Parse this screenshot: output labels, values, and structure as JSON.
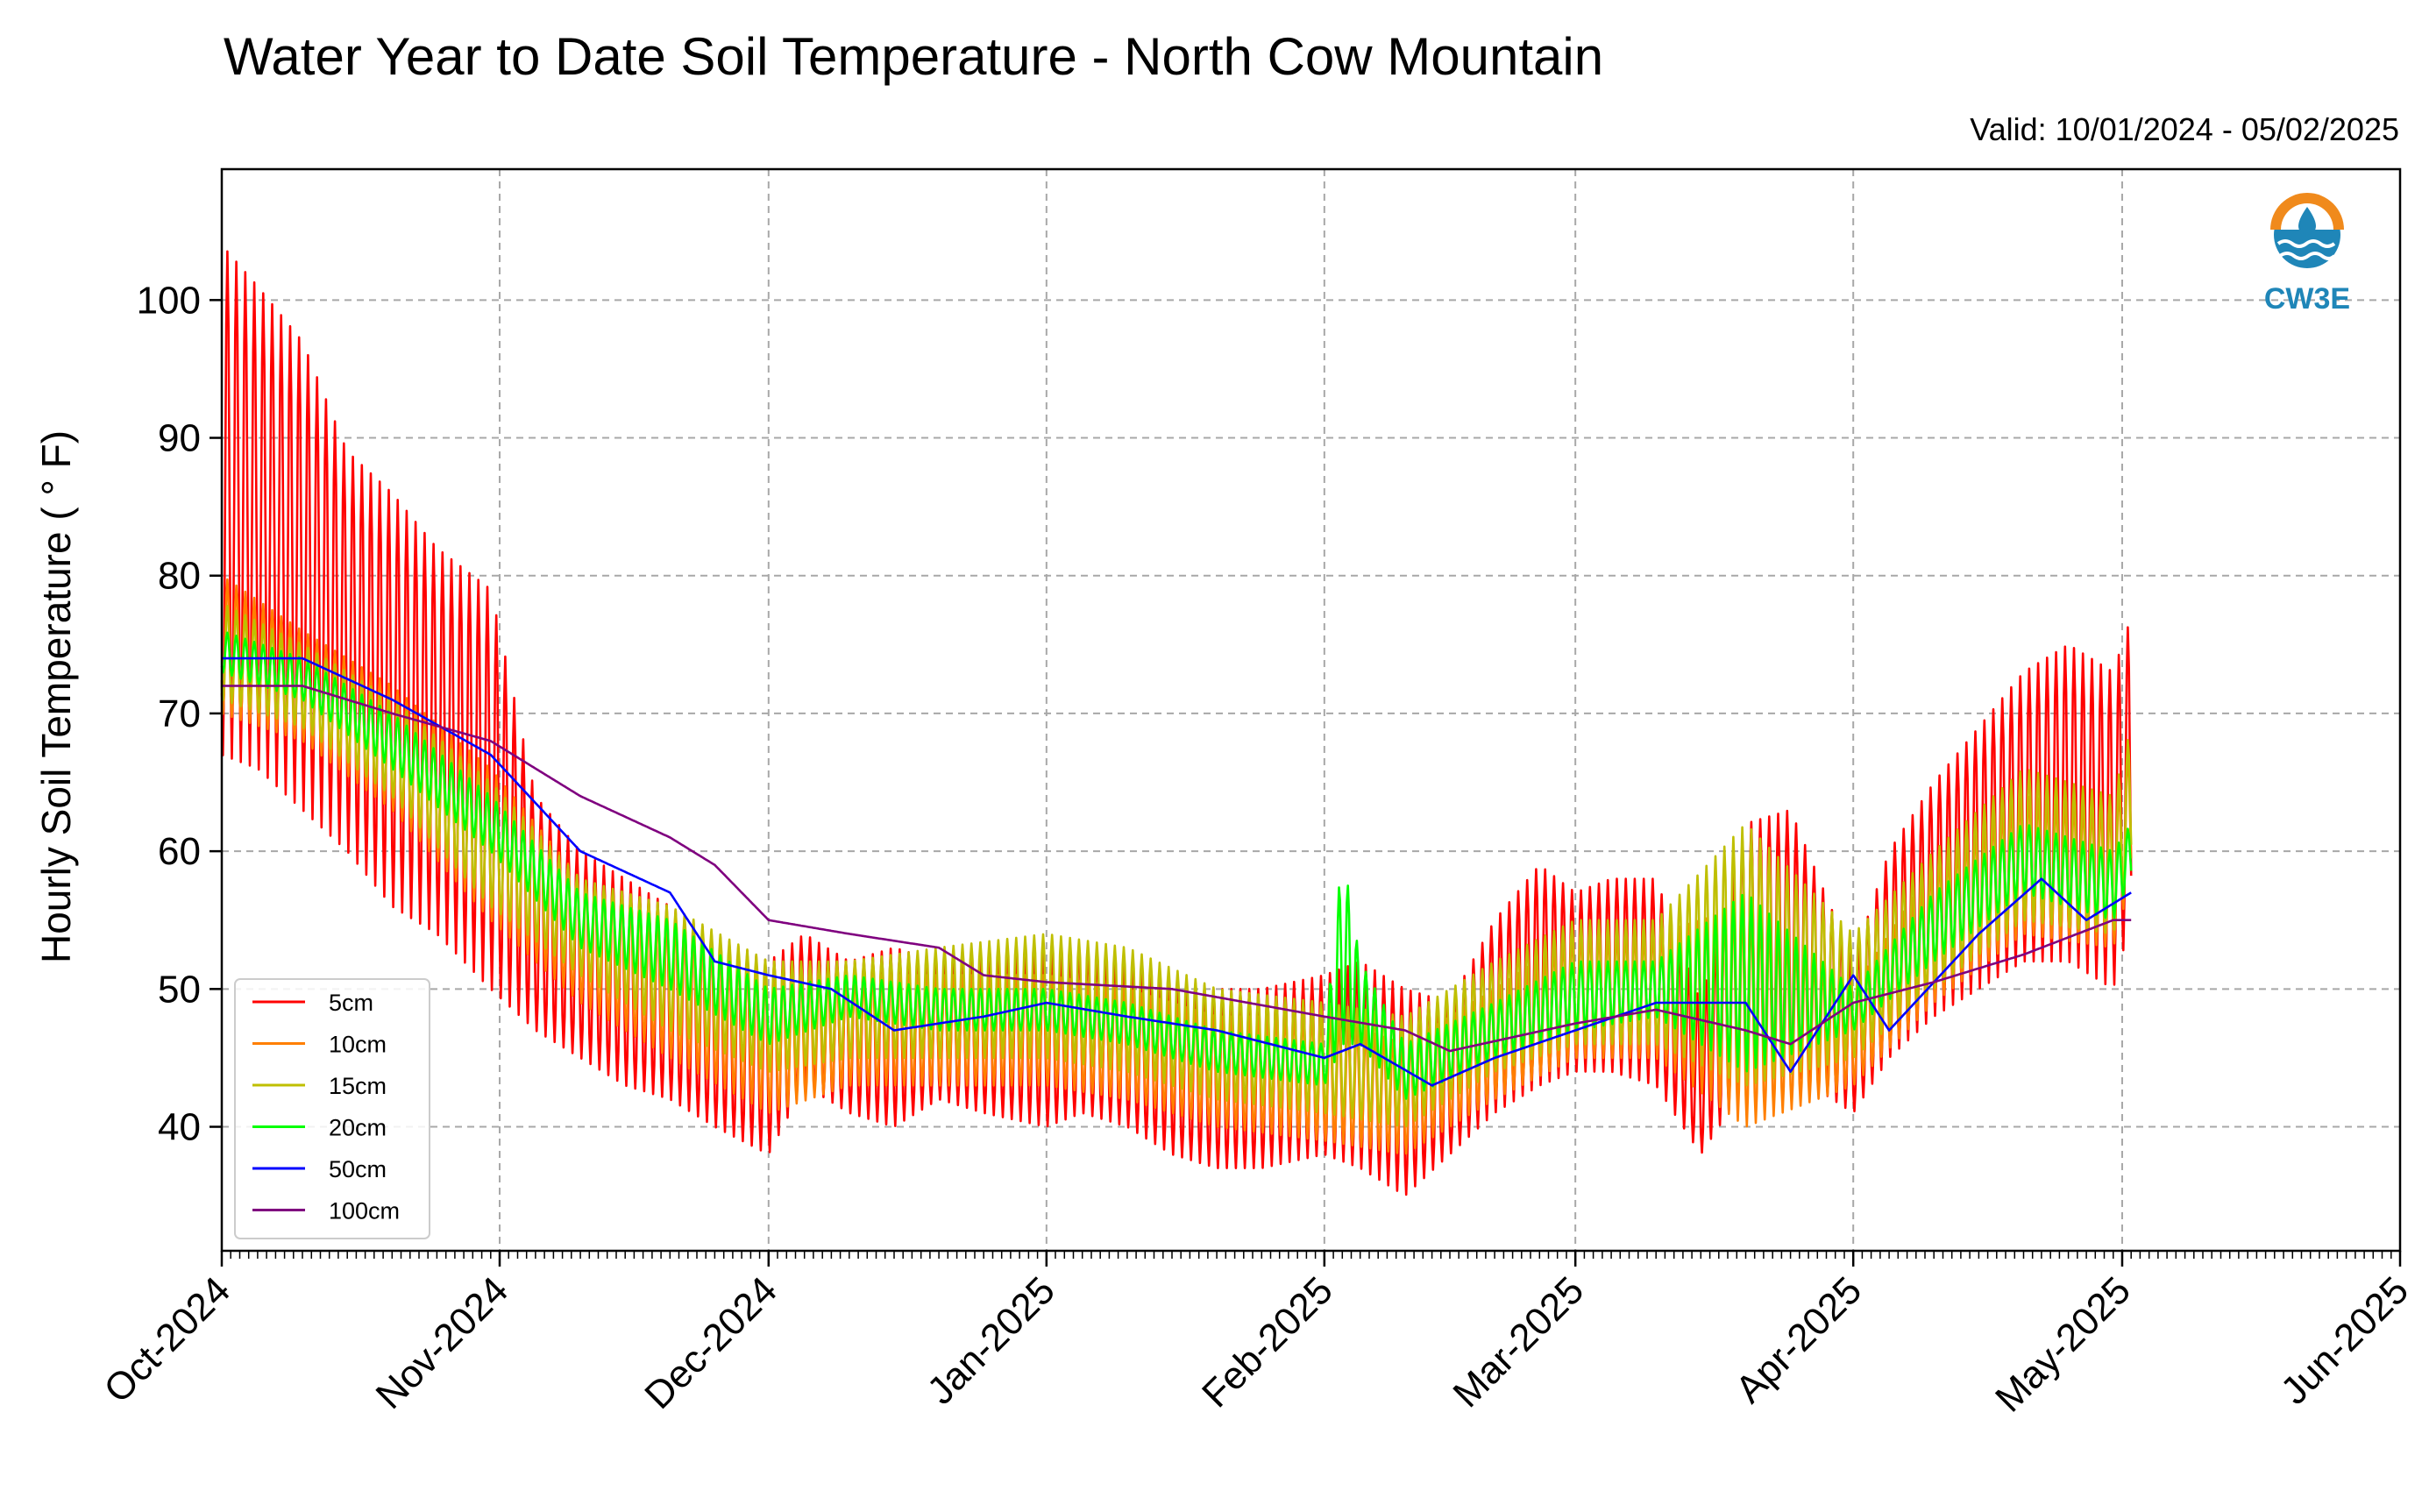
{
  "chart_data": {
    "type": "line",
    "title": "Water Year to Date Soil Temperature - North Cow Mountain",
    "subtitle": "Valid: 10/01/2024 - 05/02/2025",
    "xlabel": "",
    "ylabel": "Hourly Soil Temperature ( ° F)",
    "xlim": [
      "2024-10-01",
      "2025-06-01"
    ],
    "ylim": [
      31,
      109.5
    ],
    "yticks": [
      40,
      50,
      60,
      70,
      80,
      90,
      100
    ],
    "xticks": [
      {
        "label": "Oct-2024",
        "date": "2024-10-01"
      },
      {
        "label": "Nov-2024",
        "date": "2024-11-01"
      },
      {
        "label": "Dec-2024",
        "date": "2024-12-01"
      },
      {
        "label": "Jan-2025",
        "date": "2025-01-01"
      },
      {
        "label": "Feb-2025",
        "date": "2025-02-01"
      },
      {
        "label": "Mar-2025",
        "date": "2025-03-01"
      },
      {
        "label": "Apr-2025",
        "date": "2025-04-01"
      },
      {
        "label": "May-2025",
        "date": "2025-05-01"
      },
      {
        "label": "Jun-2025",
        "date": "2025-06-01"
      }
    ],
    "grid": true,
    "legend_position": "lower-left",
    "series": [
      {
        "name": "5cm",
        "color": "#ff0000",
        "x": [
          "2024-10-01",
          "2024-10-05",
          "2024-10-10",
          "2024-10-15",
          "2024-10-20",
          "2024-10-25",
          "2024-10-31",
          "2024-11-05",
          "2024-11-10",
          "2024-11-15",
          "2024-11-20",
          "2024-11-25",
          "2024-12-01",
          "2024-12-05",
          "2024-12-10",
          "2024-12-15",
          "2024-12-20",
          "2024-12-25",
          "2025-01-01",
          "2025-01-05",
          "2025-01-10",
          "2025-01-15",
          "2025-01-20",
          "2025-01-25",
          "2025-02-01",
          "2025-02-05",
          "2025-02-10",
          "2025-02-15",
          "2025-02-20",
          "2025-02-25",
          "2025-03-01",
          "2025-03-05",
          "2025-03-10",
          "2025-03-15",
          "2025-03-20",
          "2025-03-25",
          "2025-04-01",
          "2025-04-05",
          "2025-04-10",
          "2025-04-15",
          "2025-04-20",
          "2025-04-25",
          "2025-04-30",
          "2025-05-02"
        ],
        "daily_high": [
          104,
          101,
          97,
          89,
          86,
          82,
          79,
          64,
          60,
          58,
          56,
          54,
          52,
          54,
          52,
          53,
          52,
          53,
          53,
          53,
          52,
          51,
          50,
          50,
          51,
          52,
          50,
          49,
          55,
          59,
          57,
          58,
          58,
          49,
          62,
          63,
          52,
          60,
          65,
          69,
          73,
          75,
          73,
          77
        ],
        "daily_low": [
          67,
          66,
          63,
          60,
          56,
          54,
          50,
          47,
          45,
          43,
          42,
          40,
          38,
          43,
          41,
          40,
          42,
          41,
          40,
          41,
          40,
          38,
          37,
          37,
          38,
          37,
          35,
          38,
          41,
          43,
          44,
          44,
          43,
          38,
          43,
          44,
          41,
          45,
          48,
          50,
          52,
          52,
          50,
          55
        ]
      },
      {
        "name": "10cm",
        "color": "#ff7f00",
        "x": [
          "2024-10-01",
          "2024-10-10",
          "2024-10-20",
          "2024-10-31",
          "2024-11-10",
          "2024-11-20",
          "2024-12-01",
          "2024-12-10",
          "2024-12-20",
          "2025-01-01",
          "2025-01-10",
          "2025-01-20",
          "2025-02-01",
          "2025-02-10",
          "2025-02-20",
          "2025-03-01",
          "2025-03-10",
          "2025-03-20",
          "2025-04-01",
          "2025-04-10",
          "2025-04-20",
          "2025-04-30",
          "2025-05-02"
        ],
        "daily_high": [
          80,
          76,
          72,
          66,
          58,
          55,
          51,
          51,
          51,
          51,
          50,
          48,
          48,
          46,
          50,
          54,
          54,
          56,
          50,
          59,
          64,
          63,
          68
        ],
        "daily_low": [
          70,
          68,
          63,
          55,
          49,
          45,
          41,
          43,
          43,
          43,
          42,
          40,
          39,
          38,
          42,
          45,
          45,
          40,
          43,
          49,
          54,
          53,
          58
        ]
      },
      {
        "name": "15cm",
        "color": "#bfbf00",
        "x": [
          "2024-10-01",
          "2024-10-10",
          "2024-10-20",
          "2024-10-31",
          "2024-11-10",
          "2024-11-20",
          "2024-12-01",
          "2024-12-10",
          "2024-12-20",
          "2025-01-01",
          "2025-01-10",
          "2025-01-20",
          "2025-02-01",
          "2025-02-10",
          "2025-02-20",
          "2025-03-01",
          "2025-03-10",
          "2025-03-20",
          "2025-04-01",
          "2025-04-10",
          "2025-04-20",
          "2025-04-30",
          "2025-05-02"
        ],
        "daily_high": [
          78,
          75,
          71,
          65,
          58,
          56,
          52,
          52,
          53,
          54,
          53,
          50,
          49,
          48,
          52,
          55,
          55,
          62,
          54,
          60,
          66,
          64,
          69
        ],
        "daily_low": [
          71,
          69,
          64,
          56,
          51,
          47,
          44,
          45,
          45,
          45,
          44,
          42,
          41,
          40,
          44,
          46,
          46,
          43,
          45,
          50,
          55,
          54,
          59
        ]
      },
      {
        "name": "20cm",
        "color": "#00ff00",
        "x": [
          "2024-10-01",
          "2024-10-10",
          "2024-10-20",
          "2024-10-31",
          "2024-11-10",
          "2024-11-20",
          "2024-12-01",
          "2024-12-10",
          "2024-12-20",
          "2025-01-01",
          "2025-01-10",
          "2025-01-20",
          "2025-02-01",
          "2025-02-03",
          "2025-02-05",
          "2025-02-10",
          "2025-02-20",
          "2025-03-01",
          "2025-03-10",
          "2025-03-20",
          "2025-04-01",
          "2025-04-10",
          "2025-04-20",
          "2025-04-30",
          "2025-05-02"
        ],
        "daily_high": [
          76,
          74,
          70,
          64,
          57,
          55,
          50,
          51,
          50,
          50,
          49,
          47,
          46,
          60,
          52,
          46,
          49,
          52,
          52,
          57,
          50,
          57,
          62,
          60,
          62
        ],
        "daily_low": [
          73,
          71,
          66,
          60,
          53,
          50,
          46,
          48,
          47,
          47,
          46,
          44,
          43,
          46,
          46,
          42,
          45,
          47,
          48,
          44,
          47,
          52,
          57,
          55,
          58
        ]
      },
      {
        "name": "50cm",
        "color": "#0000ff",
        "x": [
          "2024-10-01",
          "2024-10-10",
          "2024-10-20",
          "2024-10-31",
          "2024-11-10",
          "2024-11-20",
          "2024-11-25",
          "2024-12-01",
          "2024-12-08",
          "2024-12-15",
          "2024-12-25",
          "2025-01-01",
          "2025-01-10",
          "2025-01-20",
          "2025-02-01",
          "2025-02-05",
          "2025-02-13",
          "2025-02-20",
          "2025-03-01",
          "2025-03-10",
          "2025-03-20",
          "2025-03-25",
          "2025-04-01",
          "2025-04-05",
          "2025-04-15",
          "2025-04-22",
          "2025-04-27",
          "2025-05-02"
        ],
        "values": [
          74,
          74,
          71,
          67,
          60,
          57,
          52,
          51,
          50,
          47,
          48,
          49,
          48,
          47,
          45,
          46,
          43,
          45,
          47,
          49,
          49,
          44,
          51,
          47,
          54,
          58,
          55,
          57
        ]
      },
      {
        "name": "100cm",
        "color": "#7f007f",
        "x": [
          "2024-10-01",
          "2024-10-10",
          "2024-10-20",
          "2024-10-31",
          "2024-11-10",
          "2024-11-20",
          "2024-11-25",
          "2024-12-01",
          "2024-12-10",
          "2024-12-20",
          "2024-12-25",
          "2025-01-01",
          "2025-01-15",
          "2025-02-01",
          "2025-02-10",
          "2025-02-15",
          "2025-03-01",
          "2025-03-10",
          "2025-03-20",
          "2025-03-25",
          "2025-04-01",
          "2025-04-10",
          "2025-04-20",
          "2025-04-30",
          "2025-05-02"
        ],
        "values": [
          72,
          72,
          70,
          68,
          64,
          61,
          59,
          55,
          54,
          53,
          51,
          50.5,
          50,
          48,
          47,
          45.5,
          47.5,
          48.5,
          47,
          46,
          49,
          50.5,
          52.5,
          55,
          55
        ]
      }
    ]
  },
  "logo": {
    "text": "CW3E",
    "color_orange": "#f08a1c",
    "color_blue": "#1f86b8"
  }
}
